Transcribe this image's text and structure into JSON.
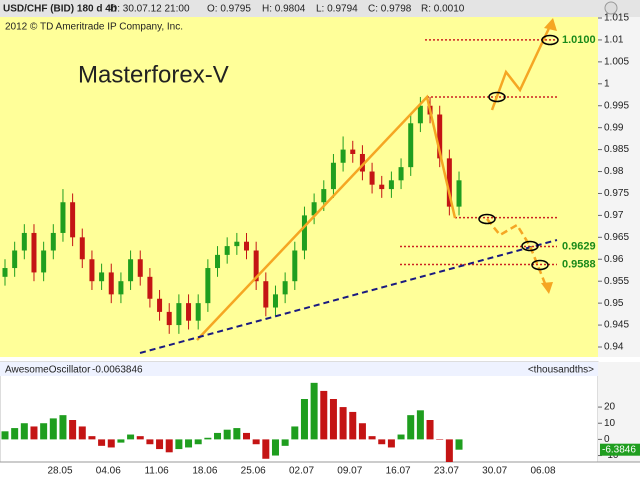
{
  "header": {
    "symbol": "USD/CHF (BID) 180 d 4h",
    "date": "D: 30.07.12 21:00",
    "open": "O: 0.9795",
    "high": "H: 0.9804",
    "low": "L: 0.9794",
    "close": "C: 0.9798",
    "range": "R: 0.0010"
  },
  "x_labels": [
    "28.05",
    "04.06",
    "11.06",
    "18.06",
    "25.06",
    "02.07",
    "09.07",
    "16.07",
    "23.07",
    "30.07",
    "06.08"
  ],
  "chart_data": [
    {
      "type": "candlestick",
      "title": "Masterforex-V",
      "subtitle": "2012 © TD Ameritrade IP Company, Inc.",
      "up_color": "#1f9e1f",
      "down_color": "#c41414",
      "open": [
        0.956,
        0.958,
        0.962,
        0.966,
        0.957,
        0.962,
        0.966,
        0.973,
        0.965,
        0.96,
        0.955,
        0.957,
        0.952,
        0.955,
        0.96,
        0.956,
        0.951,
        0.948,
        0.945,
        0.95,
        0.946,
        0.95,
        0.958,
        0.961,
        0.963,
        0.964,
        0.962,
        0.955,
        0.949,
        0.952,
        0.955,
        0.962,
        0.97,
        0.973,
        0.976,
        0.982,
        0.985,
        0.984,
        0.98,
        0.977,
        0.976,
        0.978,
        0.981,
        0.991,
        0.995,
        0.993,
        0.983,
        0.972
      ],
      "high": [
        0.96,
        0.964,
        0.968,
        0.968,
        0.964,
        0.968,
        0.976,
        0.975,
        0.967,
        0.962,
        0.959,
        0.959,
        0.957,
        0.962,
        0.962,
        0.958,
        0.953,
        0.95,
        0.952,
        0.952,
        0.952,
        0.96,
        0.963,
        0.965,
        0.966,
        0.966,
        0.964,
        0.957,
        0.954,
        0.957,
        0.964,
        0.972,
        0.975,
        0.978,
        0.984,
        0.988,
        0.987,
        0.986,
        0.982,
        0.979,
        0.98,
        0.983,
        0.993,
        0.997,
        0.997,
        0.995,
        0.985,
        0.98
      ],
      "low": [
        0.954,
        0.956,
        0.96,
        0.955,
        0.955,
        0.96,
        0.964,
        0.963,
        0.958,
        0.953,
        0.953,
        0.95,
        0.95,
        0.953,
        0.954,
        0.949,
        0.946,
        0.943,
        0.943,
        0.944,
        0.944,
        0.948,
        0.956,
        0.959,
        0.961,
        0.96,
        0.953,
        0.947,
        0.947,
        0.95,
        0.953,
        0.96,
        0.968,
        0.971,
        0.974,
        0.98,
        0.982,
        0.978,
        0.975,
        0.974,
        0.974,
        0.976,
        0.979,
        0.989,
        0.991,
        0.981,
        0.97,
        0.97
      ],
      "close": [
        0.958,
        0.962,
        0.966,
        0.957,
        0.962,
        0.966,
        0.973,
        0.965,
        0.96,
        0.955,
        0.957,
        0.952,
        0.955,
        0.96,
        0.956,
        0.951,
        0.948,
        0.945,
        0.95,
        0.946,
        0.95,
        0.958,
        0.961,
        0.963,
        0.964,
        0.962,
        0.955,
        0.949,
        0.952,
        0.955,
        0.962,
        0.97,
        0.973,
        0.976,
        0.982,
        0.985,
        0.984,
        0.98,
        0.977,
        0.976,
        0.978,
        0.981,
        0.991,
        0.995,
        0.993,
        0.983,
        0.972,
        0.978
      ],
      "ylim": [
        0.94,
        1.015
      ],
      "yticks": [
        1.015,
        1.01,
        1.005,
        1,
        0.995,
        0.99,
        0.985,
        0.98,
        0.975,
        0.97,
        0.965,
        0.96,
        0.955,
        0.95,
        0.945,
        0.94
      ],
      "level_color": "#cc2222",
      "levels": [
        {
          "value": 1.01,
          "label": "1.0100"
        },
        0.997,
        0.9695,
        {
          "value": 0.9629,
          "label": "0.9629"
        },
        {
          "value": 0.9588,
          "label": "0.9588"
        }
      ]
    },
    {
      "type": "bar",
      "name": "AwesomeOscillator",
      "current": "-0.0063846",
      "units": "<thousandths>",
      "up_color": "#1f9e1f",
      "down_color": "#c41414",
      "values": [
        5,
        7,
        10,
        8,
        10,
        13,
        15,
        12,
        8,
        2,
        -4,
        -5,
        -2,
        3,
        2,
        -3,
        -6,
        -8,
        -6,
        -5,
        -3,
        1,
        4,
        6,
        7,
        4,
        -3,
        -12,
        -10,
        -4,
        8,
        25,
        35,
        30,
        25,
        20,
        17,
        10,
        2,
        -3,
        -5,
        3,
        15,
        18,
        12,
        0,
        -14,
        -6.3846
      ],
      "current_label": "-6.3846",
      "ylim": [
        -14,
        38
      ],
      "yticks": [
        20,
        10,
        0,
        -10
      ]
    }
  ]
}
